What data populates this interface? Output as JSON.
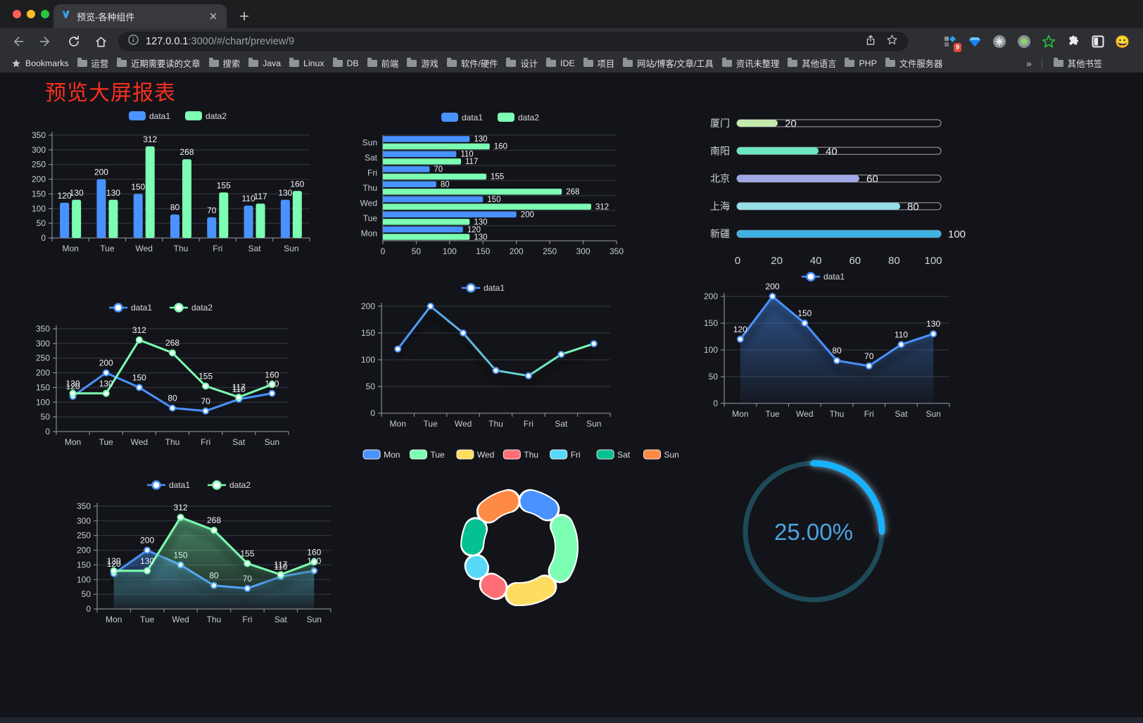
{
  "browser": {
    "tab_title": "预览-各种组件",
    "url_host": "127.0.0.1",
    "url_rest": ":3000/#/chart/preview/9",
    "extension_badge": "9",
    "avatar_emoji": "😀",
    "bookmarks_label": "Bookmarks",
    "bookmark_folders": [
      "运营",
      "近期需要读的文章",
      "搜索",
      "Java",
      "Linux",
      "DB",
      "前端",
      "游戏",
      "软件/硬件",
      "设计",
      "IDE",
      "项目",
      "网站/博客/文章/工具",
      "资讯未整理",
      "其他语言",
      "PHP",
      "文件服务器"
    ],
    "bookmarks_overflow": "»",
    "other_bookmarks": "其他书签"
  },
  "page": {
    "title": "预览大屏报表"
  },
  "chart_data": [
    {
      "id": "bar-vertical",
      "type": "bar",
      "categories": [
        "Mon",
        "Tue",
        "Wed",
        "Thu",
        "Fri",
        "Sat",
        "Sun"
      ],
      "series": [
        {
          "name": "data1",
          "color": "#4992ff",
          "values": [
            120,
            200,
            150,
            80,
            70,
            110,
            130
          ]
        },
        {
          "name": "data2",
          "color": "#7cffb2",
          "values": [
            130,
            130,
            312,
            268,
            155,
            117,
            160
          ]
        }
      ],
      "ylim": [
        0,
        350
      ],
      "ytick_step": 50,
      "labels": true,
      "legend": "rect"
    },
    {
      "id": "bar-horizontal",
      "type": "bar-horizontal",
      "categories": [
        "Mon",
        "Tue",
        "Wed",
        "Thu",
        "Fri",
        "Sat",
        "Sun"
      ],
      "series": [
        {
          "name": "data1",
          "color": "#4992ff",
          "values": [
            120,
            200,
            150,
            80,
            70,
            110,
            130
          ]
        },
        {
          "name": "data2",
          "color": "#7cffb2",
          "values": [
            130,
            130,
            312,
            268,
            155,
            117,
            160
          ]
        }
      ],
      "xlim": [
        0,
        350
      ],
      "xtick_step": 50,
      "labels": true,
      "legend": "rect"
    },
    {
      "id": "progress-list",
      "type": "progress",
      "max": 100,
      "axis_ticks": [
        0,
        20,
        40,
        60,
        80,
        100
      ],
      "items": [
        {
          "label": "厦门",
          "value": 20,
          "color": "#c4ebad"
        },
        {
          "label": "南阳",
          "value": 40,
          "color": "#6be6c1"
        },
        {
          "label": "北京",
          "value": 60,
          "color": "#a0a7e6"
        },
        {
          "label": "上海",
          "value": 80,
          "color": "#96dee8"
        },
        {
          "label": "新疆",
          "value": 100,
          "color": "#3fb1e3"
        }
      ]
    },
    {
      "id": "line-two",
      "type": "line",
      "categories": [
        "Mon",
        "Tue",
        "Wed",
        "Thu",
        "Fri",
        "Sat",
        "Sun"
      ],
      "series": [
        {
          "name": "data1",
          "color": "#4992ff",
          "values": [
            120,
            200,
            150,
            80,
            70,
            110,
            130
          ]
        },
        {
          "name": "data2",
          "color": "#7cffb2",
          "values": [
            130,
            130,
            312,
            268,
            155,
            117,
            160
          ]
        }
      ],
      "ylim": [
        0,
        350
      ],
      "ytick_step": 50,
      "labels": true,
      "legend": "line"
    },
    {
      "id": "line-gradient",
      "type": "line",
      "categories": [
        "Mon",
        "Tue",
        "Wed",
        "Thu",
        "Fri",
        "Sat",
        "Sun"
      ],
      "series": [
        {
          "name": "data1",
          "color": "#4992ff",
          "gradient": [
            "#4992ff",
            "#7cffb2"
          ],
          "values": [
            120,
            200,
            150,
            80,
            70,
            110,
            130
          ]
        }
      ],
      "ylim": [
        0,
        200
      ],
      "ytick_step": 50,
      "labels": false,
      "legend": "line",
      "shadow": true
    },
    {
      "id": "area-one",
      "type": "line",
      "area": true,
      "categories": [
        "Mon",
        "Tue",
        "Wed",
        "Thu",
        "Fri",
        "Sat",
        "Sun"
      ],
      "series": [
        {
          "name": "data1",
          "color": "#4992ff",
          "values": [
            120,
            200,
            150,
            80,
            70,
            110,
            130
          ]
        }
      ],
      "ylim": [
        0,
        200
      ],
      "ytick_step": 50,
      "labels": true,
      "legend": "line",
      "shadow": true
    },
    {
      "id": "area-two",
      "type": "line",
      "area": true,
      "categories": [
        "Mon",
        "Tue",
        "Wed",
        "Thu",
        "Fri",
        "Sat",
        "Sun"
      ],
      "series": [
        {
          "name": "data1",
          "color": "#4992ff",
          "values": [
            120,
            200,
            150,
            80,
            70,
            110,
            130
          ]
        },
        {
          "name": "data2",
          "color": "#7cffb2",
          "values": [
            130,
            130,
            312,
            268,
            155,
            117,
            160
          ]
        }
      ],
      "ylim": [
        0,
        350
      ],
      "ytick_step": 50,
      "labels": true,
      "legend": "line",
      "shadow": true
    },
    {
      "id": "donut",
      "type": "pie",
      "items": [
        {
          "label": "Mon",
          "value": 120,
          "color": "#4992ff"
        },
        {
          "label": "Tue",
          "value": 200,
          "color": "#7cffb2"
        },
        {
          "label": "Wed",
          "value": 150,
          "color": "#fddd60"
        },
        {
          "label": "Thu",
          "value": 80,
          "color": "#ff6e76"
        },
        {
          "label": "Fri",
          "value": 70,
          "color": "#58d9f9"
        },
        {
          "label": "Sat",
          "value": 110,
          "color": "#05c091"
        },
        {
          "label": "Sun",
          "value": 130,
          "color": "#ff8a45"
        }
      ]
    },
    {
      "id": "gauge",
      "type": "gauge",
      "value": 25,
      "label": "25.00%",
      "track_color": "#1d4a58",
      "bar_color": "#18b2ff",
      "text_color": "#4aa4e4"
    }
  ]
}
